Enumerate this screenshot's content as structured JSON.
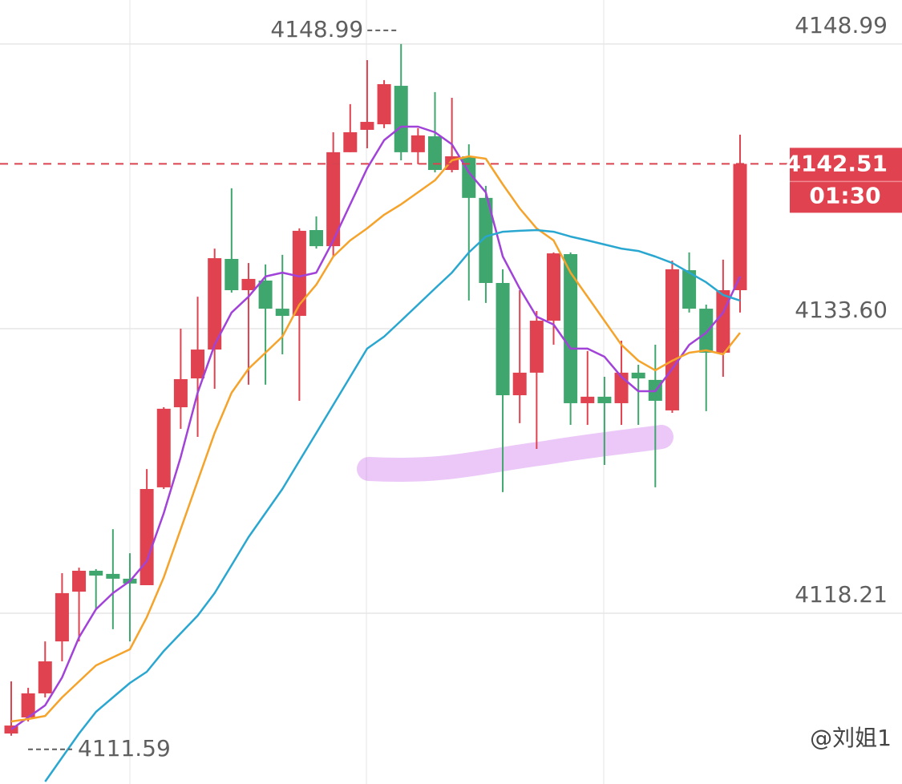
{
  "chart_data": {
    "type": "candlestick",
    "ylim": [
      4108.98,
      4151.37
    ],
    "yticks": [
      4148.99,
      {
        "value": 4133.6,
        "label": "4133.60"
      },
      4118.21
    ],
    "grid": true,
    "up_color": "#e0424f",
    "down_color": "#3fa66e",
    "open": [
      4111.71,
      4112.58,
      4113.88,
      4116.69,
      4119.38,
      4120.51,
      4120.34,
      4120.08,
      4119.73,
      4125.02,
      4129.35,
      4130.91,
      4132.47,
      4137.37,
      4135.68,
      4136.2,
      4134.68,
      4134.29,
      4138.93,
      4138.06,
      4143.14,
      4144.35,
      4144.65,
      4146.73,
      4143.14,
      4144.0,
      4142.18,
      4142.92,
      4140.67,
      4136.07,
      4130.0,
      4131.22,
      4134.03,
      4137.63,
      4129.57,
      4129.92,
      4129.57,
      4131.22,
      4130.83,
      4129.18,
      4136.76,
      4134.68,
      4132.3,
      4135.68
    ],
    "high": [
      4114.53,
      4114.18,
      4116.69,
      4120.38,
      4120.68,
      4120.6,
      4122.76,
      4121.46,
      4126.01,
      4129.35,
      4133.6,
      4135.33,
      4137.93,
      4141.19,
      4137.15,
      4137.07,
      4137.59,
      4139.02,
      4139.67,
      4144.22,
      4145.74,
      4148.12,
      4147.04,
      4148.99,
      4144.44,
      4146.39,
      4146.08,
      4143.57,
      4141.32,
      4136.81,
      4135.68,
      4134.55,
      4137.72,
      4137.72,
      4132.39,
      4131.0,
      4132.95,
      4131.65,
      4132.73,
      4137.28,
      4137.72,
      4134.9,
      4137.33,
      4144.09
    ],
    "low": [
      4111.59,
      4112.36,
      4113.66,
      4115.61,
      4116.69,
      4118.43,
      4117.35,
      4116.69,
      4119.73,
      4124.93,
      4128.18,
      4127.75,
      4130.35,
      4135.55,
      4130.57,
      4130.57,
      4132.21,
      4129.7,
      4137.93,
      4137.5,
      4143.14,
      4143.35,
      4144.44,
      4142.7,
      4142.49,
      4142.05,
      4142.05,
      4135.12,
      4134.99,
      4124.76,
      4128.49,
      4127.1,
      4132.73,
      4128.4,
      4128.4,
      4126.23,
      4128.4,
      4128.4,
      4125.02,
      4129.05,
      4134.47,
      4129.14,
      4131.0,
      4134.47
    ],
    "close": [
      4112.14,
      4113.88,
      4115.61,
      4119.3,
      4120.51,
      4120.25,
      4120.08,
      4119.82,
      4124.93,
      4129.27,
      4130.87,
      4132.47,
      4137.41,
      4135.68,
      4136.29,
      4134.68,
      4134.29,
      4138.89,
      4138.06,
      4143.14,
      4144.22,
      4144.78,
      4146.82,
      4143.14,
      4144.05,
      4142.18,
      4142.92,
      4140.67,
      4136.07,
      4130.0,
      4131.22,
      4134.03,
      4137.67,
      4129.57,
      4129.92,
      4129.57,
      4131.22,
      4130.91,
      4129.7,
      4136.81,
      4134.68,
      4132.3,
      4135.68,
      4142.51
    ],
    "lines": [
      {
        "color": "#a142d8",
        "values": [
          4111.93,
          4112.58,
          4113.23,
          4114.74,
          4116.91,
          4118.43,
          4119.3,
          4119.95,
          4121.03,
          4123.63,
          4126.66,
          4130.13,
          4132.73,
          4134.47,
          4135.33,
          4136.42,
          4136.63,
          4136.42,
          4136.63,
          4138.37,
          4140.32,
          4142.27,
          4143.79,
          4144.52,
          4144.52,
          4144.22,
          4143.57,
          4142.05,
          4140.97,
          4137.5,
          4135.77,
          4134.25,
          4133.82,
          4132.52,
          4132.52,
          4132.08,
          4131.0,
          4130.22,
          4130.22,
          4131.43,
          4132.73,
          4133.38,
          4134.47,
          4136.42
        ]
      },
      {
        "color": "#f5a32a",
        "values": [
          4112.36,
          4112.49,
          4112.66,
          4113.66,
          4114.53,
          4115.39,
          4115.83,
          4116.26,
          4118.0,
          4120.16,
          4122.76,
          4125.36,
          4127.96,
          4130.13,
          4131.43,
          4132.3,
          4133.17,
          4134.9,
          4135.98,
          4137.5,
          4138.37,
          4139.02,
          4139.76,
          4140.32,
          4140.97,
          4141.62,
          4142.7,
          4142.92,
          4142.79,
          4141.4,
          4140.1,
          4139.02,
          4138.37,
          4136.63,
          4135.33,
          4134.03,
          4132.73,
          4131.87,
          4131.35,
          4131.87,
          4132.3,
          4132.43,
          4132.21,
          4133.38
        ]
      },
      {
        "color": "#2aa7d1",
        "values": [
          null,
          null,
          4109.11,
          4110.41,
          4111.71,
          4112.88,
          4113.66,
          4114.44,
          4115.05,
          4116.17,
          4117.13,
          4118.08,
          4119.3,
          4120.81,
          4122.33,
          4123.63,
          4124.93,
          4126.45,
          4127.96,
          4129.48,
          4131.0,
          4132.52,
          4133.17,
          4134.03,
          4134.9,
          4135.77,
          4136.63,
          4137.72,
          4138.58,
          4138.84,
          4138.89,
          4138.93,
          4138.84,
          4138.58,
          4138.37,
          4138.15,
          4137.93,
          4137.8,
          4137.5,
          4137.15,
          4136.63,
          4136.11,
          4135.42,
          4135.12
        ]
      }
    ],
    "high_mark": 4148.99,
    "low_mark": 4111.59,
    "last_price": 4142.51,
    "countdown": "01:30",
    "watermark": "@刘姐1"
  }
}
